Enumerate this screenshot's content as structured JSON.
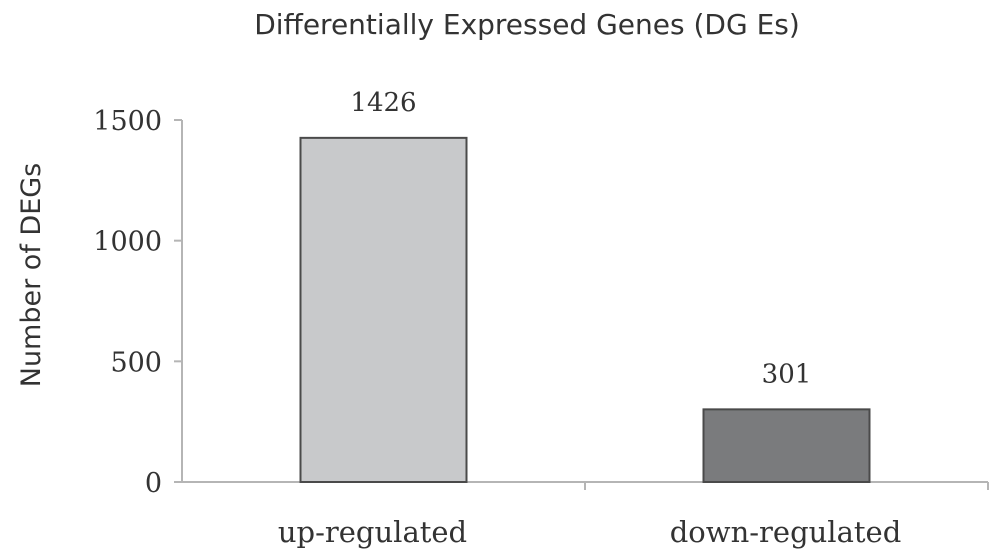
{
  "chart_data": {
    "type": "bar",
    "title": "Differentially Expressed Genes (DG Es)",
    "ylabel": "Number of DEGs",
    "xlabel": "",
    "categories": [
      "up-regulated",
      "down-regulated"
    ],
    "values": [
      1426,
      301
    ],
    "value_labels": [
      "1426",
      "301"
    ],
    "ylim": [
      0,
      1500
    ],
    "yticks": [
      0,
      500,
      1000,
      1500
    ],
    "ytick_labels": [
      "0",
      "500",
      "1000",
      "1500"
    ],
    "bar_colors": [
      "#c8c9cb",
      "#7a7b7d"
    ],
    "bar_edge_color": "#4a4a4a",
    "axis_color": "#b5b5b5",
    "grid": false,
    "legend": "none"
  }
}
